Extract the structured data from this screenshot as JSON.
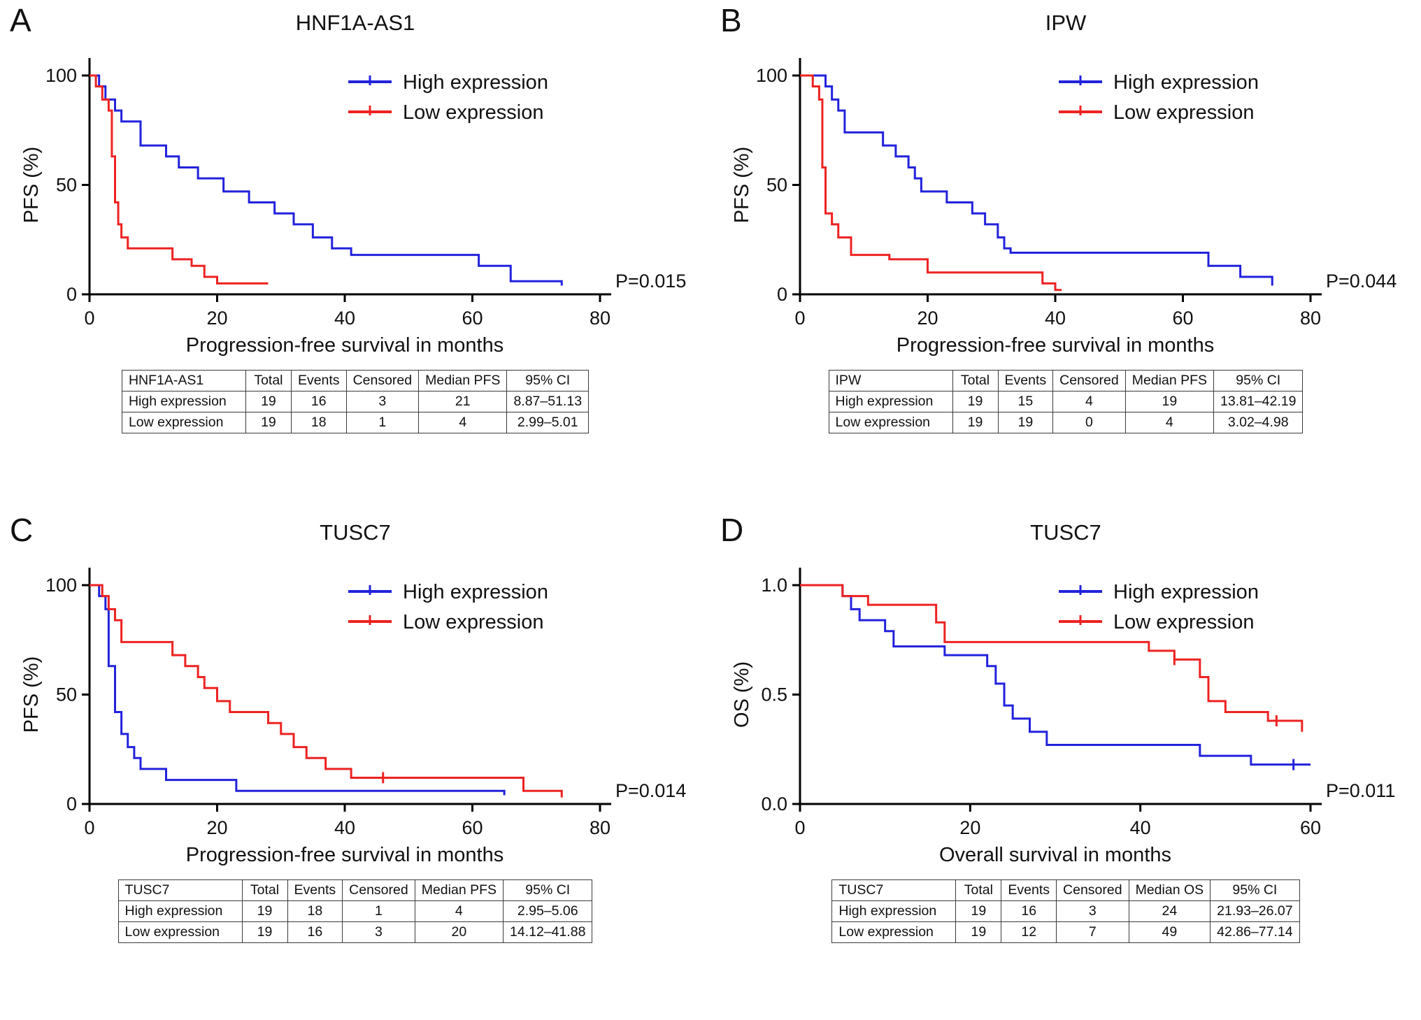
{
  "figure": {
    "background": "#ffffff",
    "axis_color": "#000000",
    "text_color": "#111111"
  },
  "colors": {
    "high_expression": "#2222dd",
    "low_expression": "#ee2222"
  },
  "chart_data": [
    {
      "type": "line",
      "step": true,
      "letter": "A",
      "title": "HNF1A-AS1",
      "pvalue": "P=0.015",
      "xlabel": "Progression-free survival in months",
      "ylabel": "PFS (%)",
      "xlim": [
        0,
        80
      ],
      "ylim": [
        0,
        100
      ],
      "xticks": [
        0,
        20,
        40,
        60,
        80
      ],
      "xtick_labels": [
        "0",
        "20",
        "40",
        "60",
        "80"
      ],
      "yticks": [
        0,
        50,
        100
      ],
      "ytick_labels": [
        "0",
        "50",
        "100"
      ],
      "grid": false,
      "legend_position": "top-right",
      "legend": [
        {
          "label": "High expression",
          "color": "#2222dd"
        },
        {
          "label": "Low expression",
          "color": "#ee2222"
        }
      ],
      "series": [
        {
          "name": "High expression",
          "color": "#2222dd",
          "points": [
            [
              0,
              100
            ],
            [
              1.5,
              95
            ],
            [
              2.5,
              89
            ],
            [
              4,
              84
            ],
            [
              5,
              79
            ],
            [
              8,
              68
            ],
            [
              12,
              63
            ],
            [
              14,
              58
            ],
            [
              17,
              53
            ],
            [
              21,
              47
            ],
            [
              25,
              42
            ],
            [
              29,
              37
            ],
            [
              32,
              32
            ],
            [
              35,
              26
            ],
            [
              38,
              21
            ],
            [
              41,
              18
            ],
            [
              61,
              13
            ],
            [
              66,
              6
            ],
            [
              74,
              4
            ]
          ],
          "censors": []
        },
        {
          "name": "Low expression",
          "color": "#ee2222",
          "points": [
            [
              0,
              100
            ],
            [
              1,
              95
            ],
            [
              2,
              89
            ],
            [
              3,
              84
            ],
            [
              3.5,
              63
            ],
            [
              4,
              42
            ],
            [
              4.5,
              32
            ],
            [
              5,
              26
            ],
            [
              6,
              21
            ],
            [
              13,
              16
            ],
            [
              16,
              13
            ],
            [
              18,
              8
            ],
            [
              20,
              5
            ],
            [
              28,
              5
            ]
          ],
          "censors": []
        }
      ],
      "table": {
        "header": [
          "HNF1A-AS1",
          "Total",
          "Events",
          "Censored",
          "Median PFS",
          "95% CI"
        ],
        "rows": [
          [
            "High expression",
            "19",
            "16",
            "3",
            "21",
            "8.87–51.13"
          ],
          [
            "Low expression",
            "19",
            "18",
            "1",
            "4",
            "2.99–5.01"
          ]
        ]
      }
    },
    {
      "type": "line",
      "step": true,
      "letter": "B",
      "title": "IPW",
      "pvalue": "P=0.044",
      "xlabel": "Progression-free survival in months",
      "ylabel": "PFS (%)",
      "xlim": [
        0,
        80
      ],
      "ylim": [
        0,
        100
      ],
      "xticks": [
        0,
        20,
        40,
        60,
        80
      ],
      "xtick_labels": [
        "0",
        "20",
        "40",
        "60",
        "80"
      ],
      "yticks": [
        0,
        50,
        100
      ],
      "ytick_labels": [
        "0",
        "50",
        "100"
      ],
      "grid": false,
      "legend_position": "top-right",
      "legend": [
        {
          "label": "High expression",
          "color": "#2222dd"
        },
        {
          "label": "Low expression",
          "color": "#ee2222"
        }
      ],
      "series": [
        {
          "name": "High expression",
          "color": "#2222dd",
          "points": [
            [
              0,
              100
            ],
            [
              4,
              95
            ],
            [
              5,
              89
            ],
            [
              6,
              84
            ],
            [
              7,
              74
            ],
            [
              13,
              68
            ],
            [
              15,
              63
            ],
            [
              17,
              58
            ],
            [
              18,
              53
            ],
            [
              19,
              47
            ],
            [
              23,
              42
            ],
            [
              27,
              37
            ],
            [
              29,
              32
            ],
            [
              31,
              26
            ],
            [
              32,
              21
            ],
            [
              33,
              19
            ],
            [
              64,
              13
            ],
            [
              69,
              8
            ],
            [
              74,
              4
            ]
          ],
          "censors": []
        },
        {
          "name": "Low expression",
          "color": "#ee2222",
          "points": [
            [
              0,
              100
            ],
            [
              2,
              95
            ],
            [
              3,
              89
            ],
            [
              3.5,
              58
            ],
            [
              4,
              37
            ],
            [
              5,
              32
            ],
            [
              6,
              26
            ],
            [
              8,
              18
            ],
            [
              14,
              16
            ],
            [
              20,
              10
            ],
            [
              38,
              5
            ],
            [
              40,
              2
            ],
            [
              41,
              2
            ]
          ],
          "censors": []
        }
      ],
      "table": {
        "header": [
          "IPW",
          "Total",
          "Events",
          "Censored",
          "Median PFS",
          "95% CI"
        ],
        "rows": [
          [
            "High expression",
            "19",
            "15",
            "4",
            "19",
            "13.81–42.19"
          ],
          [
            "Low expression",
            "19",
            "19",
            "0",
            "4",
            "3.02–4.98"
          ]
        ]
      }
    },
    {
      "type": "line",
      "step": true,
      "letter": "C",
      "title": "TUSC7",
      "pvalue": "P=0.014",
      "xlabel": "Progression-free survival in months",
      "ylabel": "PFS (%)",
      "xlim": [
        0,
        80
      ],
      "ylim": [
        0,
        100
      ],
      "xticks": [
        0,
        20,
        40,
        60,
        80
      ],
      "xtick_labels": [
        "0",
        "20",
        "40",
        "60",
        "80"
      ],
      "yticks": [
        0,
        50,
        100
      ],
      "ytick_labels": [
        "0",
        "50",
        "100"
      ],
      "grid": false,
      "legend_position": "top-right",
      "legend": [
        {
          "label": "High expression",
          "color": "#2222dd"
        },
        {
          "label": "Low expression",
          "color": "#ee2222"
        }
      ],
      "series": [
        {
          "name": "High expression",
          "color": "#2222dd",
          "points": [
            [
              0,
              100
            ],
            [
              1.5,
              95
            ],
            [
              2.5,
              89
            ],
            [
              3,
              63
            ],
            [
              4,
              42
            ],
            [
              5,
              32
            ],
            [
              6,
              26
            ],
            [
              7,
              21
            ],
            [
              8,
              16
            ],
            [
              12,
              11
            ],
            [
              23,
              6
            ],
            [
              65,
              4
            ]
          ],
          "censors": []
        },
        {
          "name": "Low expression",
          "color": "#ee2222",
          "points": [
            [
              0,
              100
            ],
            [
              2,
              95
            ],
            [
              3,
              89
            ],
            [
              4,
              84
            ],
            [
              5,
              74
            ],
            [
              13,
              68
            ],
            [
              15,
              63
            ],
            [
              17,
              58
            ],
            [
              18,
              53
            ],
            [
              20,
              47
            ],
            [
              22,
              42
            ],
            [
              28,
              37
            ],
            [
              30,
              32
            ],
            [
              32,
              26
            ],
            [
              34,
              21
            ],
            [
              37,
              16
            ],
            [
              41,
              12
            ],
            [
              68,
              6
            ],
            [
              74,
              3
            ]
          ],
          "censors": [
            [
              46,
              12
            ]
          ]
        }
      ],
      "table": {
        "header": [
          "TUSC7",
          "Total",
          "Events",
          "Censored",
          "Median PFS",
          "95% CI"
        ],
        "rows": [
          [
            "High expression",
            "19",
            "18",
            "1",
            "4",
            "2.95–5.06"
          ],
          [
            "Low expression",
            "19",
            "16",
            "3",
            "20",
            "14.12–41.88"
          ]
        ]
      }
    },
    {
      "type": "line",
      "step": true,
      "letter": "D",
      "title": "TUSC7",
      "pvalue": "P=0.011",
      "xlabel": "Overall survival in months",
      "ylabel": "OS (%)",
      "xlim": [
        0,
        60
      ],
      "ylim": [
        0,
        1
      ],
      "xticks": [
        0,
        20,
        40,
        60
      ],
      "xtick_labels": [
        "0",
        "20",
        "40",
        "60"
      ],
      "yticks": [
        0,
        0.5,
        1
      ],
      "ytick_labels": [
        "0.0",
        "0.5",
        "1.0"
      ],
      "grid": false,
      "legend_position": "top-right",
      "legend": [
        {
          "label": "High expression",
          "color": "#2222dd"
        },
        {
          "label": "Low expression",
          "color": "#ee2222"
        }
      ],
      "series": [
        {
          "name": "High expression",
          "color": "#2222dd",
          "points": [
            [
              0,
              1.0
            ],
            [
              5,
              0.95
            ],
            [
              6,
              0.89
            ],
            [
              7,
              0.84
            ],
            [
              10,
              0.79
            ],
            [
              11,
              0.72
            ],
            [
              17,
              0.68
            ],
            [
              22,
              0.63
            ],
            [
              23,
              0.55
            ],
            [
              24,
              0.45
            ],
            [
              25,
              0.39
            ],
            [
              27,
              0.33
            ],
            [
              29,
              0.27
            ],
            [
              47,
              0.22
            ],
            [
              53,
              0.18
            ],
            [
              60,
              0.18
            ]
          ],
          "censors": [
            [
              58,
              0.18
            ]
          ]
        },
        {
          "name": "Low expression",
          "color": "#ee2222",
          "points": [
            [
              0,
              1.0
            ],
            [
              5,
              0.95
            ],
            [
              8,
              0.91
            ],
            [
              16,
              0.83
            ],
            [
              17,
              0.74
            ],
            [
              41,
              0.7
            ],
            [
              44,
              0.66
            ],
            [
              47,
              0.58
            ],
            [
              48,
              0.47
            ],
            [
              50,
              0.42
            ],
            [
              55,
              0.38
            ],
            [
              59,
              0.33
            ]
          ],
          "censors": [
            [
              44,
              0.66
            ],
            [
              56,
              0.38
            ]
          ]
        }
      ],
      "table": {
        "header": [
          "TUSC7",
          "Total",
          "Events",
          "Censored",
          "Median OS",
          "95% CI"
        ],
        "rows": [
          [
            "High expression",
            "19",
            "16",
            "3",
            "24",
            "21.93–26.07"
          ],
          [
            "Low expression",
            "19",
            "12",
            "7",
            "49",
            "42.86–77.14"
          ]
        ]
      }
    }
  ]
}
